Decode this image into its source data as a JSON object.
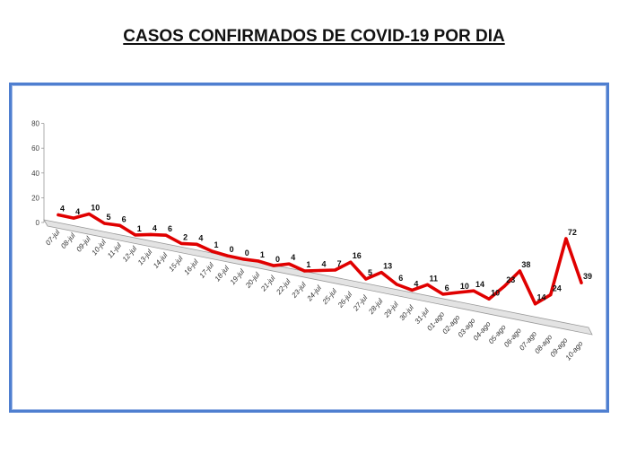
{
  "title": "CASOS CONFIRMADOS DE COVID-19 POR DIA",
  "colors": {
    "line": "#e00000",
    "frame": "#4f7fd0",
    "axis": "#9a9a9a",
    "grid": "#d9d9d9"
  },
  "chart_data": {
    "type": "line",
    "title": "CASOS CONFIRMADOS DE COVID-19 POR DIA",
    "xlabel": "",
    "ylabel": "",
    "ylim": [
      0,
      80
    ],
    "yticks": [
      0,
      20,
      40,
      60,
      80
    ],
    "grid": false,
    "legend": "none",
    "style": "3d-perspective",
    "categories": [
      "07-jul",
      "08-jul",
      "09-jul",
      "10-jul",
      "11-jul",
      "12-jul",
      "13-jul",
      "14-jul",
      "15-jul",
      "16-jul",
      "17-jul",
      "18-jul",
      "19-jul",
      "20-jul",
      "21-jul",
      "22-jul",
      "23-jul",
      "24-jul",
      "25-jul",
      "26-jul",
      "27-jul",
      "28-jul",
      "29-jul",
      "30-jul",
      "31-jul",
      "01-ago",
      "02-ago",
      "03-ago",
      "04-ago",
      "05-ago",
      "06-ago",
      "07-ago",
      "08-ago",
      "09-ago",
      "10-ago"
    ],
    "series": [
      {
        "values": [
          4,
          4,
          10,
          5,
          6,
          1,
          4,
          6,
          2,
          4,
          1,
          0,
          0,
          1,
          0,
          4,
          1,
          4,
          7,
          16,
          5,
          13,
          6,
          4,
          11,
          6,
          10,
          14,
          10,
          23,
          38,
          14,
          24,
          72,
          39
        ]
      }
    ]
  }
}
